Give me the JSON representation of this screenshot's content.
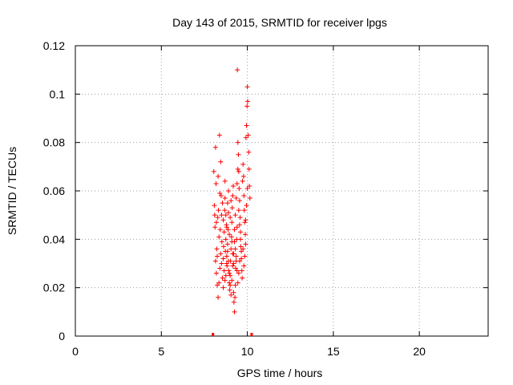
{
  "chart_data": {
    "type": "scatter",
    "title": "Day 143 of 2015, SRMTID for receiver lpgs",
    "xlabel": "GPS time / hours",
    "ylabel": "SRMTID / TECUs",
    "xlim": [
      0,
      24
    ],
    "ylim": [
      0,
      0.12
    ],
    "xticks": [
      0,
      5,
      10,
      15,
      20
    ],
    "yticks": [
      0,
      0.02,
      0.04,
      0.06,
      0.08,
      0.1,
      0.12
    ],
    "xtick_labels": [
      "0",
      "5",
      "10",
      "15",
      "20"
    ],
    "ytick_labels": [
      "0",
      "0.02",
      "0.04",
      "0.06",
      "0.08",
      "0.1",
      "0.12"
    ],
    "grid": true,
    "marker": "+",
    "color": "#ff0000",
    "axis_markers_x": [
      8.0,
      10.25
    ],
    "points": [
      [
        8.05,
        0.068
      ],
      [
        8.08,
        0.054
      ],
      [
        8.1,
        0.05
      ],
      [
        8.12,
        0.045
      ],
      [
        8.15,
        0.078
      ],
      [
        8.18,
        0.063
      ],
      [
        8.2,
        0.047
      ],
      [
        8.22,
        0.036
      ],
      [
        8.25,
        0.033
      ],
      [
        8.28,
        0.049
      ],
      [
        8.3,
        0.066
      ],
      [
        8.32,
        0.052
      ],
      [
        8.35,
        0.041
      ],
      [
        8.38,
        0.083
      ],
      [
        8.4,
        0.059
      ],
      [
        8.42,
        0.044
      ],
      [
        8.45,
        0.072
      ],
      [
        8.48,
        0.058
      ],
      [
        8.5,
        0.05
      ],
      [
        8.52,
        0.039
      ],
      [
        8.15,
        0.031
      ],
      [
        8.2,
        0.026
      ],
      [
        8.25,
        0.021
      ],
      [
        8.3,
        0.016
      ],
      [
        8.35,
        0.022
      ],
      [
        8.4,
        0.028
      ],
      [
        8.45,
        0.034
      ],
      [
        8.5,
        0.03
      ],
      [
        8.55,
        0.024
      ],
      [
        8.6,
        0.02
      ],
      [
        8.55,
        0.055
      ],
      [
        8.6,
        0.048
      ],
      [
        8.62,
        0.037
      ],
      [
        8.65,
        0.043
      ],
      [
        8.68,
        0.052
      ],
      [
        8.7,
        0.057
      ],
      [
        8.72,
        0.035
      ],
      [
        8.75,
        0.04
      ],
      [
        8.78,
        0.046
      ],
      [
        8.8,
        0.033
      ],
      [
        8.82,
        0.029
      ],
      [
        8.85,
        0.038
      ],
      [
        8.88,
        0.044
      ],
      [
        8.9,
        0.051
      ],
      [
        8.92,
        0.027
      ],
      [
        8.95,
        0.022
      ],
      [
        8.98,
        0.019
      ],
      [
        9.0,
        0.025
      ],
      [
        9.02,
        0.031
      ],
      [
        9.05,
        0.036
      ],
      [
        9.08,
        0.041
      ],
      [
        9.1,
        0.047
      ],
      [
        9.12,
        0.053
      ],
      [
        9.15,
        0.058
      ],
      [
        9.18,
        0.062
      ],
      [
        9.2,
        0.018
      ],
      [
        9.22,
        0.014
      ],
      [
        9.25,
        0.01
      ],
      [
        9.28,
        0.016
      ],
      [
        9.3,
        0.021
      ],
      [
        9.32,
        0.028
      ],
      [
        9.35,
        0.033
      ],
      [
        9.38,
        0.04
      ],
      [
        9.4,
        0.045
      ],
      [
        9.42,
        0.11
      ],
      [
        9.45,
        0.08
      ],
      [
        9.48,
        0.075
      ],
      [
        9.5,
        0.068
      ],
      [
        9.52,
        0.061
      ],
      [
        9.55,
        0.056
      ],
      [
        9.58,
        0.049
      ],
      [
        9.6,
        0.043
      ],
      [
        9.62,
        0.037
      ],
      [
        9.65,
        0.032
      ],
      [
        9.68,
        0.027
      ],
      [
        9.7,
        0.024
      ],
      [
        9.72,
        0.064
      ],
      [
        9.75,
        0.071
      ],
      [
        9.78,
        0.066
      ],
      [
        9.8,
        0.058
      ],
      [
        9.82,
        0.052
      ],
      [
        9.85,
        0.047
      ],
      [
        9.88,
        0.042
      ],
      [
        9.9,
        0.038
      ],
      [
        9.92,
        0.082
      ],
      [
        9.95,
        0.087
      ],
      [
        9.98,
        0.095
      ],
      [
        10.0,
        0.103
      ],
      [
        10.02,
        0.097
      ],
      [
        10.05,
        0.083
      ],
      [
        10.08,
        0.076
      ],
      [
        10.1,
        0.069
      ],
      [
        10.12,
        0.062
      ],
      [
        10.15,
        0.057
      ],
      [
        10.0,
        0.061
      ],
      [
        9.95,
        0.054
      ],
      [
        9.9,
        0.048
      ],
      [
        9.85,
        0.033
      ],
      [
        9.8,
        0.029
      ],
      [
        9.75,
        0.036
      ],
      [
        8.7,
        0.064
      ],
      [
        8.75,
        0.05
      ],
      [
        8.8,
        0.045
      ],
      [
        8.85,
        0.055
      ],
      [
        8.9,
        0.06
      ],
      [
        8.95,
        0.042
      ],
      [
        9.0,
        0.049
      ],
      [
        9.05,
        0.056
      ],
      [
        9.1,
        0.039
      ],
      [
        9.15,
        0.034
      ],
      [
        9.2,
        0.03
      ],
      [
        9.25,
        0.044
      ],
      [
        9.3,
        0.05
      ],
      [
        9.35,
        0.057
      ],
      [
        9.4,
        0.063
      ],
      [
        9.45,
        0.069
      ],
      [
        9.5,
        0.052
      ],
      [
        9.55,
        0.046
      ],
      [
        9.6,
        0.04
      ],
      [
        9.65,
        0.035
      ],
      [
        8.6,
        0.032
      ],
      [
        8.65,
        0.027
      ],
      [
        8.7,
        0.023
      ],
      [
        8.75,
        0.025
      ],
      [
        8.8,
        0.03
      ],
      [
        8.85,
        0.035
      ],
      [
        8.9,
        0.031
      ],
      [
        8.95,
        0.026
      ],
      [
        9.0,
        0.021
      ],
      [
        9.05,
        0.017
      ],
      [
        9.1,
        0.023
      ],
      [
        9.15,
        0.029
      ],
      [
        9.2,
        0.034
      ],
      [
        9.25,
        0.039
      ],
      [
        9.3,
        0.036
      ],
      [
        9.35,
        0.031
      ],
      [
        9.4,
        0.027
      ],
      [
        9.45,
        0.022
      ],
      [
        9.5,
        0.026
      ],
      [
        9.55,
        0.031
      ]
    ]
  }
}
